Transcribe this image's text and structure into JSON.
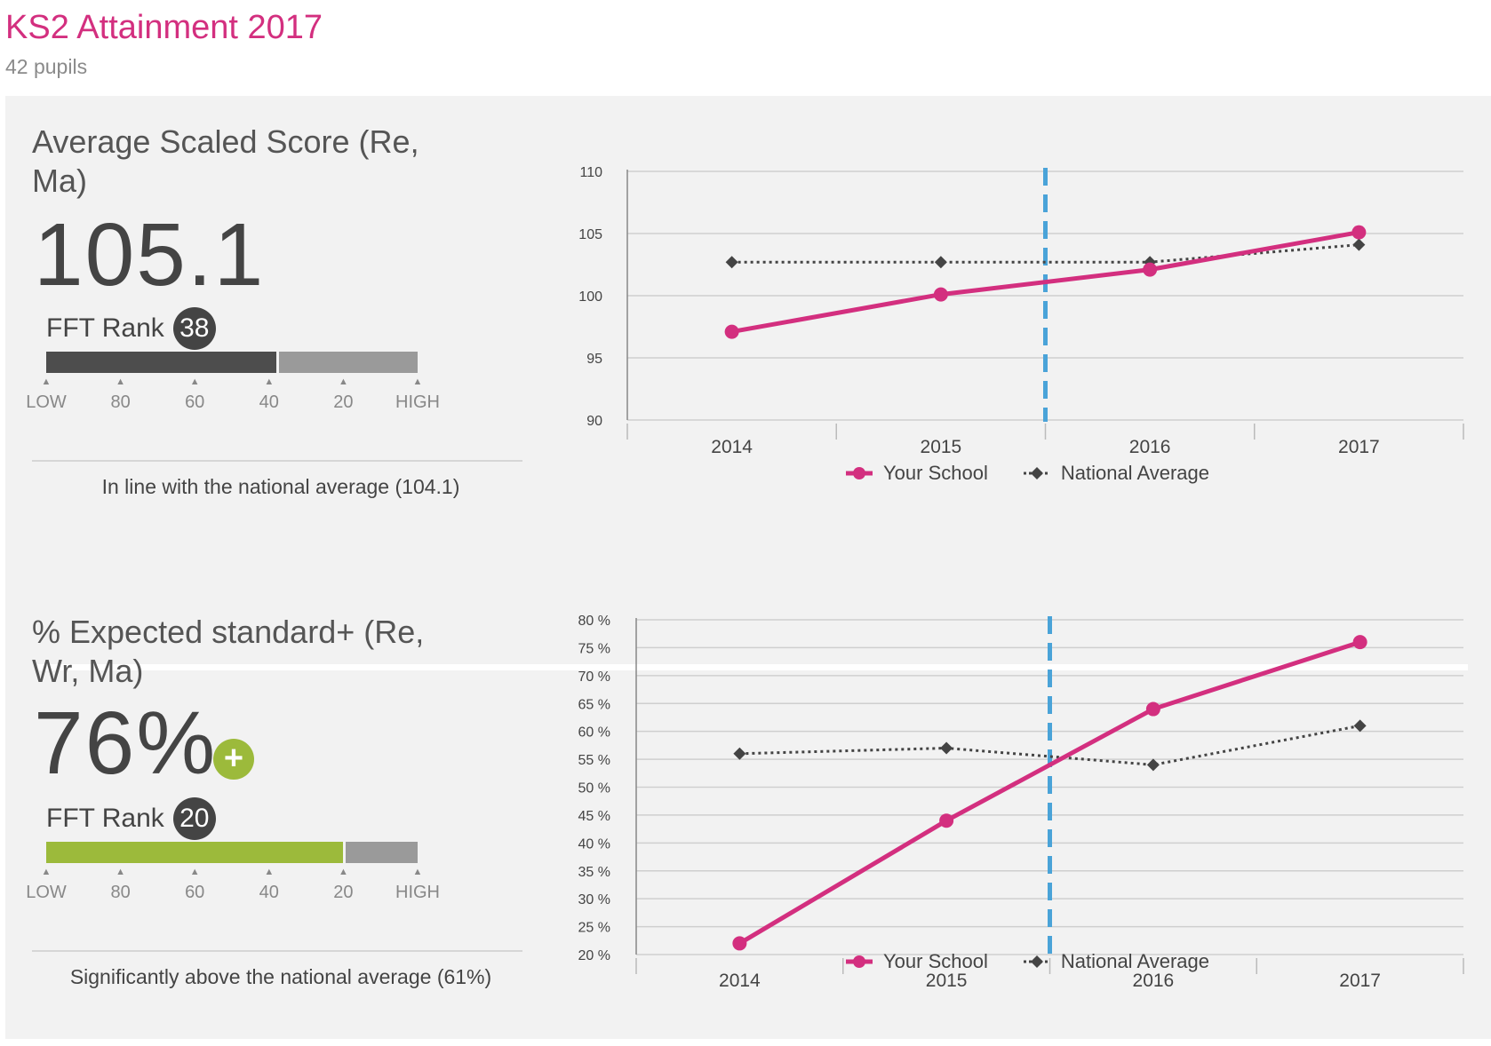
{
  "header": {
    "title": "KS2 Attainment 2017",
    "subtitle": "42 pupils"
  },
  "colors": {
    "school": "#d32f7f",
    "national": "#444444",
    "green": "#9cba3b",
    "divider_line": "#4aa3d8"
  },
  "sections": [
    {
      "title": "Average Scaled Score (Re, Ma)",
      "value": "105.1",
      "rank_label": "FFT Rank",
      "rank": "38",
      "rank_fill_color": "#4d4d4d",
      "rank_fraction": 0.62,
      "scale_labels": [
        "LOW",
        "80",
        "60",
        "40",
        "20",
        "HIGH"
      ],
      "verdict": "In line with the national average (104.1)",
      "significance_icon": "",
      "chart_data": {
        "type": "line",
        "x": [
          "2014",
          "2015",
          "2016",
          "2017"
        ],
        "ylim": [
          90,
          110
        ],
        "yticks": [
          "90",
          "95",
          "100",
          "105",
          "110"
        ],
        "ytick_values": [
          90,
          95,
          100,
          105,
          110
        ],
        "divider_between": [
          "2015",
          "2016"
        ],
        "series": [
          {
            "name": "Your School",
            "values": [
              97.1,
              100.1,
              102.1,
              105.1
            ]
          },
          {
            "name": "National Average",
            "values": [
              102.7,
              102.7,
              102.7,
              104.1
            ]
          }
        ]
      }
    },
    {
      "title": "% Expected standard+ (Re, Wr, Ma)",
      "value": "76%",
      "rank_label": "FFT Rank",
      "rank": "20",
      "rank_fill_color": "#9cba3b",
      "rank_fraction": 0.8,
      "scale_labels": [
        "LOW",
        "80",
        "60",
        "40",
        "20",
        "HIGH"
      ],
      "verdict": "Significantly above the national average (61%)",
      "significance_icon": "plus-icon",
      "chart_data": {
        "type": "line",
        "x": [
          "2014",
          "2015",
          "2016",
          "2017"
        ],
        "ylim": [
          20,
          80
        ],
        "yticks": [
          "20 %",
          "25 %",
          "30 %",
          "35 %",
          "40 %",
          "45 %",
          "50 %",
          "55 %",
          "60 %",
          "65 %",
          "70 %",
          "75 %",
          "80 %"
        ],
        "ytick_values": [
          20,
          25,
          30,
          35,
          40,
          45,
          50,
          55,
          60,
          65,
          70,
          75,
          80
        ],
        "divider_between": [
          "2015",
          "2016"
        ],
        "series": [
          {
            "name": "Your School",
            "values": [
              22,
              44,
              64,
              76
            ]
          },
          {
            "name": "National Average",
            "values": [
              56,
              57,
              54,
              61
            ]
          }
        ]
      }
    }
  ]
}
